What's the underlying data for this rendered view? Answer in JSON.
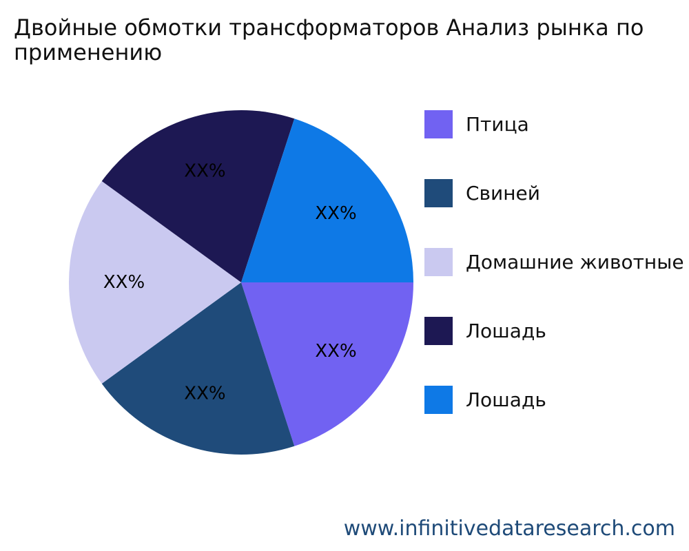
{
  "chart_data": {
    "type": "pie",
    "title_lines": [
      "Двойные обмотки трансформаторов Анализ рынка по",
      "применению"
    ],
    "categories": [
      "Птица",
      "Свиней",
      "Домашние животные",
      "Лошадь",
      "Лошадь"
    ],
    "values": [
      20,
      20,
      20,
      20,
      20
    ],
    "slice_labels": [
      "XX%",
      "XX%",
      "XX%",
      "XX%",
      "XX%"
    ],
    "colors": [
      "#7162f2",
      "#1f4b7a",
      "#cac9f0",
      "#1d1853",
      "#0e79e6"
    ],
    "legend_position": "right"
  },
  "watermark": "www.infinitivedataresearch.com"
}
